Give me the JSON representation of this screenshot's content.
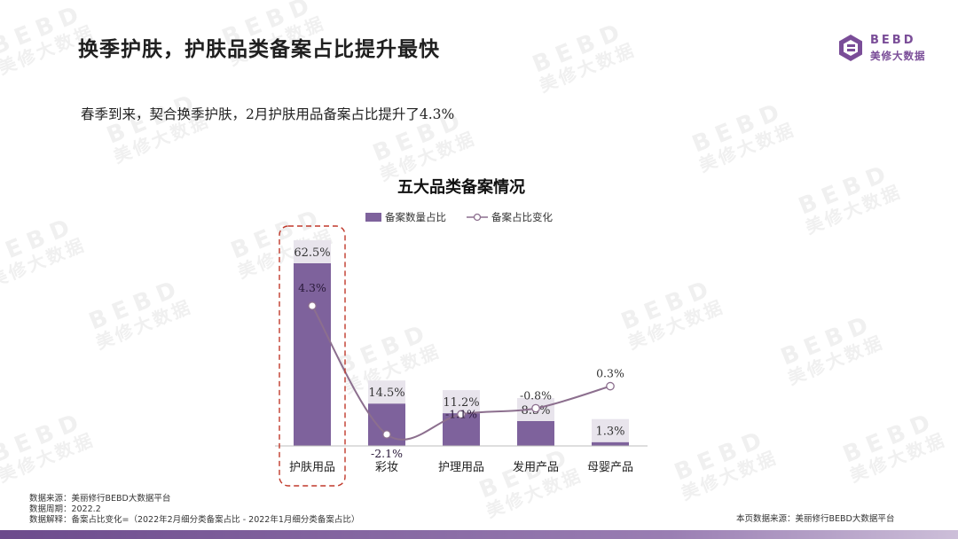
{
  "header": {
    "title": "换季护肤，护肤品类备案占比提升最快",
    "logo_en": "BEBD",
    "logo_cn": "美修大数据"
  },
  "subtitle": "春季到来，契合换季护肤，2月护肤用品备案占比提升了4.3%",
  "colors": {
    "bar": "#7e629c",
    "bar_label_bg": "#e8e4ec",
    "line": "#8c6f8e",
    "highlight": "#c0392b",
    "brand": "#7a4d98"
  },
  "chart_data": {
    "type": "bar",
    "title": "五大品类备案情况",
    "legend_position": "top",
    "categories": [
      "护肤用品",
      "彩妆",
      "护理用品",
      "发用产品",
      "母婴产品"
    ],
    "series": [
      {
        "name": "备案数量占比",
        "type": "bar",
        "values": [
          62.5,
          14.5,
          11.2,
          8.5,
          1.3
        ],
        "labels": [
          "62.5%",
          "14.5%",
          "11.2%",
          "8.5%",
          "1.3%"
        ]
      },
      {
        "name": "备案占比变化",
        "type": "line",
        "values": [
          4.3,
          -2.1,
          -1.1,
          -0.8,
          0.3
        ],
        "labels": [
          "4.3%",
          "-2.1%",
          "-1.1%",
          "-0.8%",
          "0.3%"
        ]
      }
    ],
    "highlight_category": "护肤用品",
    "grid": false
  },
  "footnotes": [
    "数据来源：美丽修行BEBD大数据平台",
    "数据周期：2022.2",
    "数据解释：备案占比变化=（2022年2月细分类备案占比 - 2022年1月细分类备案占比）"
  ],
  "source_right": "本页数据来源：美丽修行BEBD大数据平台"
}
